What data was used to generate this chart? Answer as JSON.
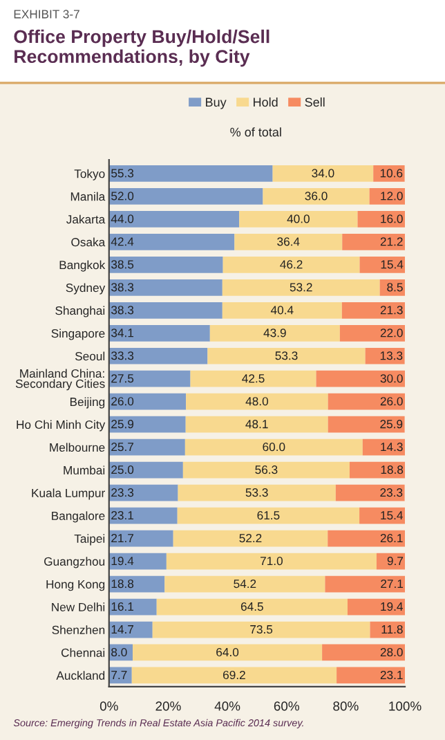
{
  "chart_data": {
    "type": "bar",
    "orientation": "horizontal",
    "stacked": true,
    "title": "Office Property Buy/Hold/Sell Recommendations, by City",
    "subtitle": "% of total",
    "annotations": [
      "EXHIBIT 3-7",
      "Source: Emerging Trends in Real Estate Asia Pacific 2014 survey."
    ],
    "categories": [
      "Tokyo",
      "Manila",
      "Jakarta",
      "Osaka",
      "Bangkok",
      "Sydney",
      "Shanghai",
      "Singapore",
      "Seoul",
      "Mainland China: Secondary Cities",
      "Beijing",
      "Ho Chi Minh City",
      "Melbourne",
      "Mumbai",
      "Kuala Lumpur",
      "Bangalore",
      "Taipei",
      "Guangzhou",
      "Hong Kong",
      "New Delhi",
      "Shenzhen",
      "Chennai",
      "Auckland"
    ],
    "series": [
      {
        "name": "Buy",
        "color": "#7f9cc8",
        "values": [
          55.3,
          52.0,
          44.0,
          42.4,
          38.5,
          38.3,
          38.3,
          34.1,
          33.3,
          27.5,
          26.0,
          25.9,
          25.7,
          25.0,
          23.3,
          23.1,
          21.7,
          19.4,
          18.8,
          16.1,
          14.7,
          8.0,
          7.7
        ],
        "value_labels": [
          "55.3",
          "52.0",
          "44.0",
          "42.4",
          "38.5",
          "38.3",
          "38.3",
          "34.1",
          "33.3",
          "27.5",
          "26.0",
          "25.9",
          "25.7",
          "25.0",
          "23.3",
          "23.1",
          "21.7",
          "19.4",
          "18.8",
          "16.1",
          "14.7",
          "8.0",
          "7.7"
        ]
      },
      {
        "name": "Hold",
        "color": "#f8d98f",
        "values": [
          34.0,
          36.0,
          40.0,
          36.4,
          46.2,
          53.2,
          40.4,
          43.9,
          53.3,
          42.5,
          48.0,
          48.1,
          60.0,
          56.3,
          53.3,
          61.5,
          52.2,
          71.0,
          54.2,
          64.5,
          73.5,
          64.0,
          69.2
        ],
        "value_labels": [
          "34.0",
          "36.0",
          "40.0",
          "36.4",
          "46.2",
          "53.2",
          "40.4",
          "43.9",
          "53.3",
          "42.5",
          "48.0",
          "48.1",
          "60.0",
          "56.3",
          "53.3",
          "61.5",
          "52.2",
          "71.0",
          "54.2",
          "64.5",
          "73.5",
          "64.0",
          "69.2"
        ]
      },
      {
        "name": "Sell",
        "color": "#f68b61",
        "values": [
          10.6,
          12.0,
          16.0,
          21.2,
          15.4,
          8.5,
          21.3,
          22.0,
          13.3,
          30.0,
          26.0,
          25.9,
          14.3,
          18.8,
          23.3,
          15.4,
          26.1,
          9.7,
          27.1,
          19.4,
          11.8,
          28.0,
          23.1
        ],
        "value_labels": [
          "10.6",
          "12.0",
          "16.0",
          "21.2",
          "15.4",
          "8.5",
          "21.3",
          "22.0",
          "13.3",
          "30.0",
          "26.0",
          "25.9",
          "14.3",
          "18.8",
          "23.3",
          "15.4",
          "26.1",
          "9.7",
          "27.1",
          "19.4",
          "11.8",
          "28.0",
          "23.1"
        ]
      }
    ],
    "xlim": [
      0,
      100
    ],
    "xticks": [
      {
        "value": 0,
        "label": "0%"
      },
      {
        "value": 20,
        "label": "20%"
      },
      {
        "value": 40,
        "label": "40%"
      },
      {
        "value": 60,
        "label": "60%"
      },
      {
        "value": 80,
        "label": "80%"
      },
      {
        "value": 100,
        "label": "100%"
      }
    ],
    "legend": "top",
    "grid": false
  }
}
